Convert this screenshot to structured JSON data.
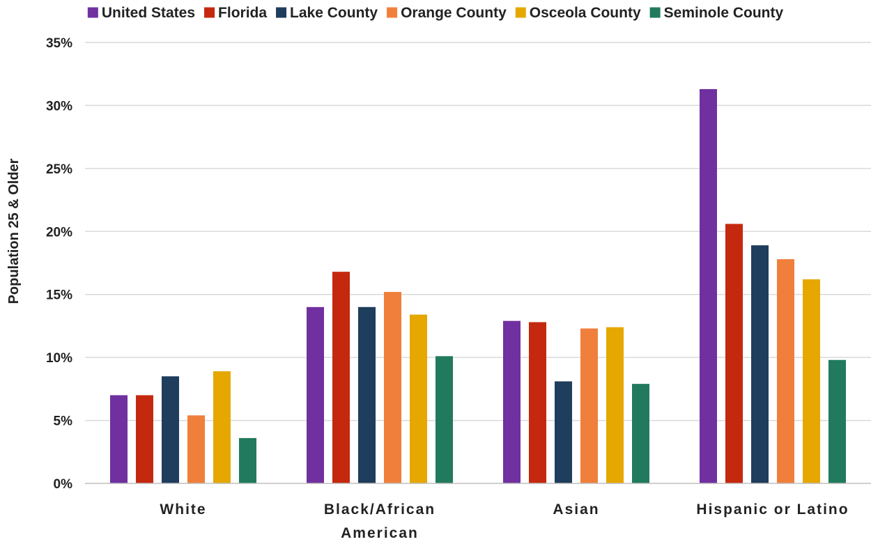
{
  "chart_data": {
    "type": "bar",
    "title": "",
    "xlabel": "",
    "ylabel": "Population 25 & Older",
    "ylim": [
      0,
      35
    ],
    "yticks": [
      0,
      5,
      10,
      15,
      20,
      25,
      30,
      35
    ],
    "ytick_labels": [
      "0%",
      "5%",
      "10%",
      "15%",
      "20%",
      "25%",
      "30%",
      "35%"
    ],
    "grid": true,
    "legend_position": "top",
    "categories": [
      [
        "White"
      ],
      [
        "Black/African",
        "American"
      ],
      [
        "Asian"
      ],
      [
        "Hispanic or Latino"
      ]
    ],
    "series": [
      {
        "name": "United States",
        "color": "#7030A0",
        "values": [
          7.0,
          14.0,
          12.9,
          31.3
        ]
      },
      {
        "name": "Florida",
        "color": "#C4290F",
        "values": [
          7.0,
          16.8,
          12.8,
          20.6
        ]
      },
      {
        "name": "Lake County",
        "color": "#1F3D5C",
        "values": [
          8.5,
          14.0,
          8.1,
          18.9
        ]
      },
      {
        "name": "Orange County",
        "color": "#F07F3C",
        "values": [
          5.4,
          15.2,
          12.3,
          17.8
        ]
      },
      {
        "name": "Osceola County",
        "color": "#E6A800",
        "values": [
          8.9,
          13.4,
          12.4,
          16.2
        ]
      },
      {
        "name": "Seminole County",
        "color": "#217A5E",
        "values": [
          3.6,
          10.1,
          7.9,
          9.8
        ]
      }
    ]
  }
}
